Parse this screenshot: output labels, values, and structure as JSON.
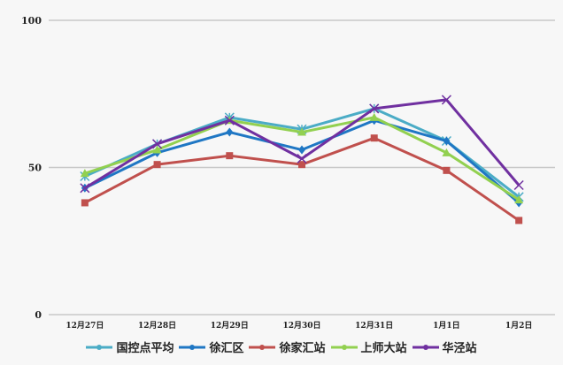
{
  "chart_data": {
    "type": "line",
    "title": "",
    "xlabel": "",
    "ylabel": "",
    "ylim": [
      0,
      100
    ],
    "yticks": [
      0,
      50,
      100
    ],
    "categories": [
      "12月27日",
      "12月28日",
      "12月29日",
      "12月30日",
      "12月31日",
      "1月1日",
      "1月2日"
    ],
    "series": [
      {
        "name": "国控点平均",
        "color": "#4bacc6",
        "marker": "star",
        "values": [
          47,
          58,
          67,
          63,
          70,
          59,
          40
        ]
      },
      {
        "name": "徐汇区",
        "color": "#1f77c4",
        "marker": "diamond",
        "values": [
          43,
          55,
          62,
          56,
          66,
          59,
          38
        ]
      },
      {
        "name": "徐家汇站",
        "color": "#c0504d",
        "marker": "square",
        "values": [
          38,
          51,
          54,
          51,
          60,
          49,
          32
        ]
      },
      {
        "name": "上师大站",
        "color": "#92d050",
        "marker": "triangle",
        "values": [
          48,
          56,
          66,
          62,
          67,
          55,
          39
        ]
      },
      {
        "name": "华泾站",
        "color": "#7030a0",
        "marker": "x",
        "values": [
          43,
          58,
          66,
          53,
          70,
          73,
          44
        ]
      }
    ],
    "grid": true,
    "legend": "bottom"
  }
}
